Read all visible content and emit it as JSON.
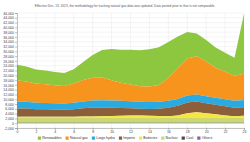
{
  "chart_data": {
    "type": "area",
    "title": "Effective Dec. 13, 2023, the methodology for tracking natural gas data was updated. Data posted prior to that is not comparable.",
    "stacked": true,
    "grid": true,
    "legend": "bottom",
    "x": [
      0,
      1,
      2,
      3,
      4,
      5,
      6,
      7,
      8,
      9,
      10,
      11,
      12,
      13,
      14,
      15,
      16,
      17,
      18,
      19,
      20,
      21,
      22,
      23,
      24
    ],
    "xlim": [
      0,
      24
    ],
    "xticks": [
      0,
      2,
      4,
      6,
      8,
      10,
      12,
      14,
      16,
      18,
      20,
      22,
      24
    ],
    "ylim": [
      -2000,
      46000
    ],
    "yticks": [
      {
        "value": -2000,
        "label": "-2,000"
      },
      0,
      {
        "value": 2000,
        "label": "2,000"
      },
      {
        "value": 4000,
        "label": "4,000"
      },
      {
        "value": 6000,
        "label": "6,000"
      },
      {
        "value": 8000,
        "label": "8,000"
      },
      {
        "value": 10000,
        "label": "10,000"
      },
      {
        "value": 12000,
        "label": "12,000"
      },
      {
        "value": 14000,
        "label": "14,000"
      },
      {
        "value": 16000,
        "label": "16,000"
      },
      {
        "value": 18000,
        "label": "18,000"
      },
      {
        "value": 20000,
        "label": "20,000"
      },
      {
        "value": 22000,
        "label": "22,000"
      },
      {
        "value": 24000,
        "label": "24,000"
      },
      {
        "value": 26000,
        "label": "26,000"
      },
      {
        "value": 28000,
        "label": "28,000"
      },
      {
        "value": 30000,
        "label": "30,000"
      },
      {
        "value": 32000,
        "label": "32,000"
      },
      {
        "value": 34000,
        "label": "34,000"
      },
      {
        "value": 36000,
        "label": "36,000"
      },
      {
        "value": 38000,
        "label": "38,000"
      },
      {
        "value": 40000,
        "label": "40,000"
      },
      {
        "value": 42000,
        "label": "42,000"
      },
      {
        "value": 44000,
        "label": "44,000"
      },
      {
        "value": 46000,
        "label": "46,000"
      }
    ],
    "series": [
      {
        "name": "Renewables",
        "color": "#8dc63f",
        "values": [
          6500,
          6200,
          5900,
          5700,
          5500,
          5400,
          6000,
          7500,
          9500,
          11500,
          13000,
          13800,
          14500,
          15000,
          15500,
          15800,
          15000,
          13000,
          11000,
          9500,
          9000,
          8500,
          8000,
          7500,
          25000
        ]
      },
      {
        "name": "Natural gas",
        "color": "#f7941d",
        "values": [
          9000,
          8500,
          8000,
          7800,
          7500,
          7300,
          8000,
          9000,
          9500,
          9500,
          8500,
          7500,
          7000,
          6500,
          6500,
          7000,
          9500,
          13000,
          15500,
          16000,
          14500,
          12500,
          11500,
          10500,
          11000
        ]
      },
      {
        "name": "Large hydro",
        "color": "#29abe2",
        "values": [
          2800,
          2800,
          2700,
          2600,
          2600,
          2600,
          2700,
          2800,
          2900,
          3000,
          3000,
          3000,
          2900,
          2900,
          2900,
          2900,
          2900,
          2900,
          2900,
          2900,
          2900,
          2900,
          2900,
          2900,
          3000
        ]
      },
      {
        "name": "Imports",
        "color": "#8b5e3c",
        "values": [
          3500,
          3500,
          3200,
          3200,
          3100,
          3000,
          3200,
          3500,
          3700,
          3600,
          3400,
          3200,
          3000,
          2800,
          2800,
          3000,
          3500,
          4000,
          4500,
          4500,
          4200,
          4000,
          3800,
          3500,
          3500
        ]
      },
      {
        "name": "Batteries",
        "color": "#f5e642",
        "values": [
          300,
          300,
          300,
          300,
          300,
          300,
          300,
          400,
          500,
          600,
          700,
          800,
          900,
          900,
          800,
          700,
          600,
          900,
          1800,
          2200,
          1800,
          1400,
          900,
          600,
          800
        ]
      },
      {
        "name": "Nuclear",
        "color": "#c9d872",
        "values": [
          2200,
          2200,
          2200,
          2200,
          2200,
          2200,
          2200,
          2200,
          2200,
          2200,
          2200,
          2200,
          2200,
          2200,
          2200,
          2200,
          2200,
          2200,
          2200,
          2200,
          2200,
          2200,
          2200,
          2200,
          2200
        ]
      },
      {
        "name": "Coal",
        "color": "#4a4a4a",
        "values": [
          50,
          50,
          50,
          50,
          50,
          50,
          50,
          50,
          50,
          50,
          50,
          50,
          50,
          50,
          50,
          50,
          50,
          50,
          50,
          50,
          50,
          50,
          50,
          50,
          50
        ]
      },
      {
        "name": "Others",
        "color": "#8a5ea8",
        "values": [
          100,
          100,
          100,
          100,
          100,
          100,
          100,
          100,
          100,
          100,
          100,
          100,
          100,
          100,
          100,
          100,
          100,
          100,
          100,
          100,
          100,
          100,
          100,
          100,
          100
        ]
      }
    ]
  }
}
